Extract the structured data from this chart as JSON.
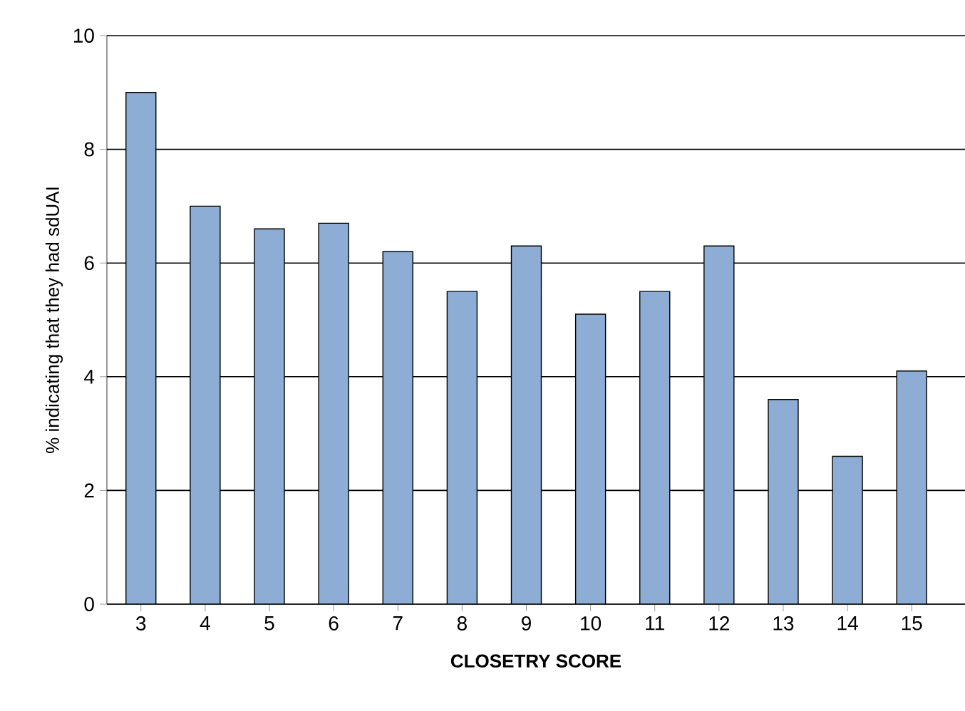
{
  "chart_data": {
    "type": "bar",
    "xlabel": "CLOSETRY SCORE",
    "ylabel": "% indicating that they had sdUAI",
    "categories": [
      "3",
      "4",
      "5",
      "6",
      "7",
      "8",
      "9",
      "10",
      "11",
      "12",
      "13",
      "14",
      "15"
    ],
    "values": [
      9,
      7,
      6.6,
      6.7,
      6.2,
      5.5,
      6.3,
      5.1,
      5.5,
      6.3,
      3.6,
      2.6,
      4.1
    ],
    "color": "#8eadd4",
    "ylim": [
      0,
      10
    ],
    "yticks": [
      0,
      2,
      4,
      6,
      8,
      10
    ],
    "grid": "y"
  }
}
